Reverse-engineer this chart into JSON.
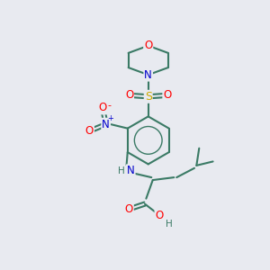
{
  "bg_color": "#e8eaf0",
  "bond_color": "#3a7a65",
  "atom_colors": {
    "O": "#ff0000",
    "N": "#0000cc",
    "S": "#ccaa00",
    "C": "#3a7a65",
    "H": "#3a7a65"
  },
  "lw": 1.5
}
